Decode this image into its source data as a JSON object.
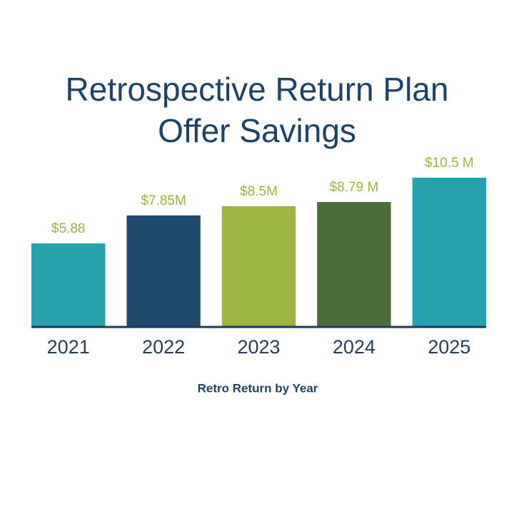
{
  "chart_data": {
    "type": "bar",
    "title": "Retrospective Return Plan\nOffer Savings",
    "categories": [
      "2021",
      "2022",
      "2023",
      "2024",
      "2025"
    ],
    "values": [
      5.88,
      7.85,
      8.5,
      8.79,
      10.5
    ],
    "value_labels": [
      "$5.88",
      "$7.85M",
      "$8.5M",
      "$8.79 M",
      "$10.5 M"
    ],
    "colors": [
      "#26a1ad",
      "#1f4a6e",
      "#9db642",
      "#4a6e3a",
      "#26a1ad"
    ],
    "x_label": "Retro Return by Year"
  }
}
